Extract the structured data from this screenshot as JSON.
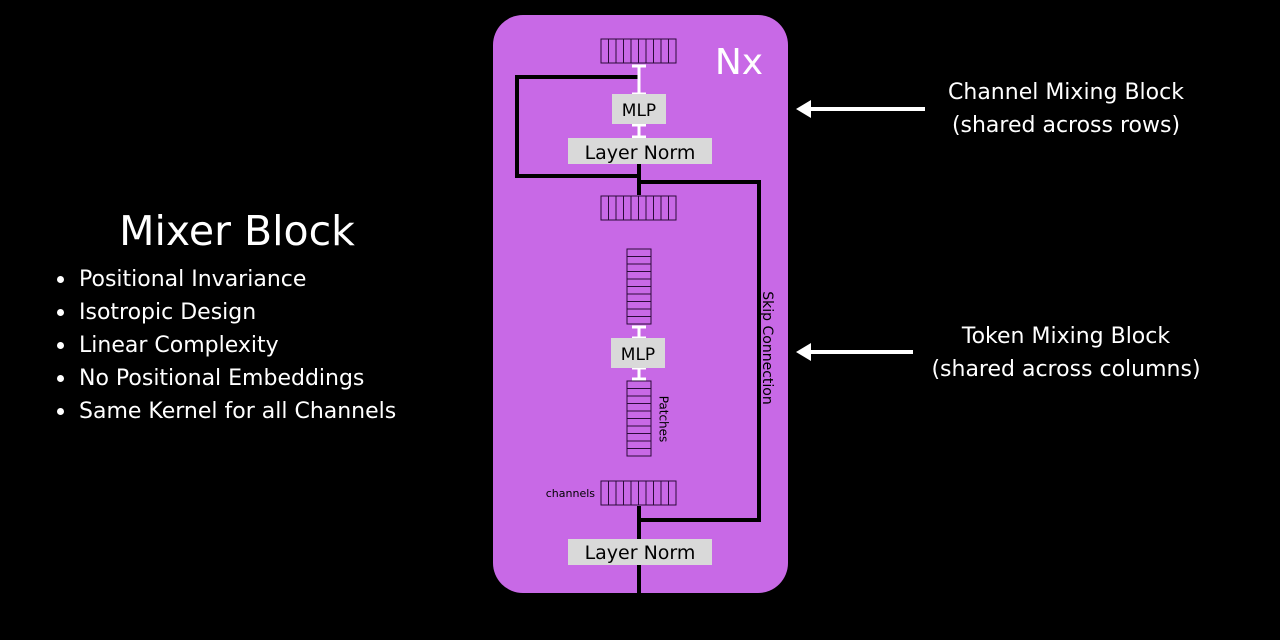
{
  "diagram": {
    "repeat_label": "Nx",
    "mlp_top_label": "MLP",
    "layer_norm_top_label": "Layer Norm",
    "mlp_bottom_label": "MLP",
    "layer_norm_bottom_label": "Layer Norm",
    "skip_connection_label": "Skip Connection",
    "patches_label": "Patches",
    "channels_label": "channels",
    "block_fill": "#c869e6",
    "box_fill": "#d9d9d9"
  },
  "side_panel": {
    "title": "Mixer Block",
    "bullets": [
      "Positional Invariance",
      "Isotropic Design",
      "Linear Complexity",
      "No Positional Embeddings",
      "Same Kernel for all Channels"
    ]
  },
  "callouts": {
    "channel_mixing": {
      "line1": "Channel Mixing Block",
      "line2": "(shared across rows)"
    },
    "token_mixing": {
      "line1": "Token Mixing Block",
      "line2": "(shared across columns)"
    }
  }
}
